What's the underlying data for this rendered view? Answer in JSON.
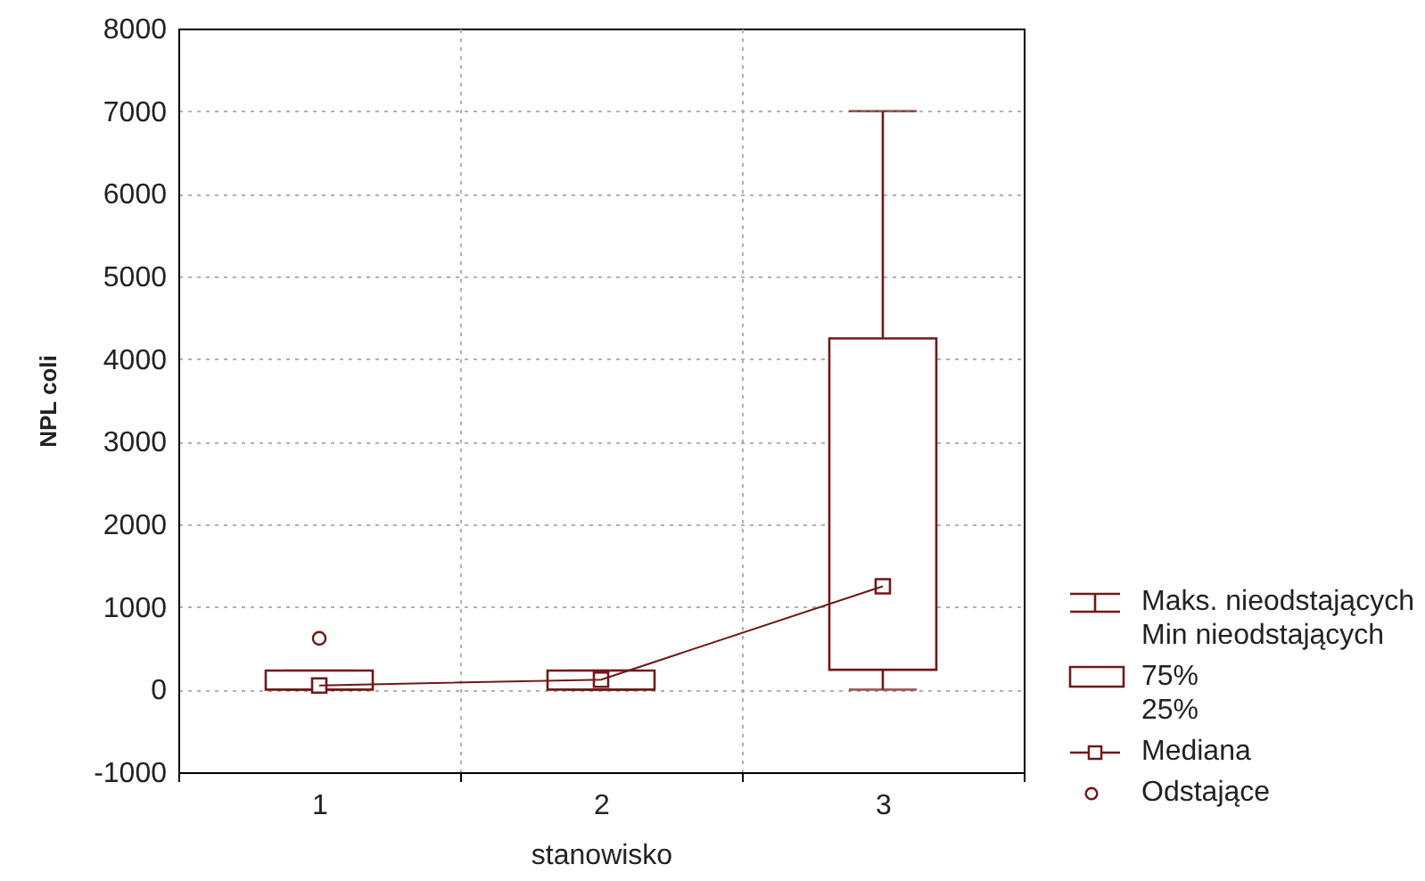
{
  "chart_data": {
    "type": "box",
    "categories": [
      "1",
      "2",
      "3"
    ],
    "xlabel": "stanowisko",
    "ylabel": "NPL coli",
    "ylim": [
      -1000,
      8000
    ],
    "yticks": [
      -1000,
      0,
      1000,
      2000,
      3000,
      4000,
      5000,
      6000,
      7000,
      8000
    ],
    "grid": true,
    "legend": "bottom right",
    "annotations": [
      "Maks. nieodstających\nMin nieodstających"
    ],
    "series": [
      {
        "name": "75%\n25%",
        "color": "#701818",
        "marker": "square",
        "boxes": [
          {
            "low": 0,
            "q1": 0,
            "median": 50,
            "q3": 230,
            "high": 230
          },
          {
            "low": 0,
            "q1": 0,
            "median": 120,
            "q3": 230,
            "high": 230
          },
          {
            "low": 0,
            "q1": 240,
            "median": 1250,
            "q3": 4250,
            "high": 7000
          }
        ]
      },
      {
        "type": "line",
        "name": "Mediana",
        "color": "#701818",
        "values": [
          50,
          120,
          1250
        ]
      },
      {
        "type": "scatter",
        "name": "Odstające",
        "color": "#701818",
        "marker": "circle",
        "x": [
          "1"
        ],
        "values": [
          620
        ]
      }
    ]
  }
}
